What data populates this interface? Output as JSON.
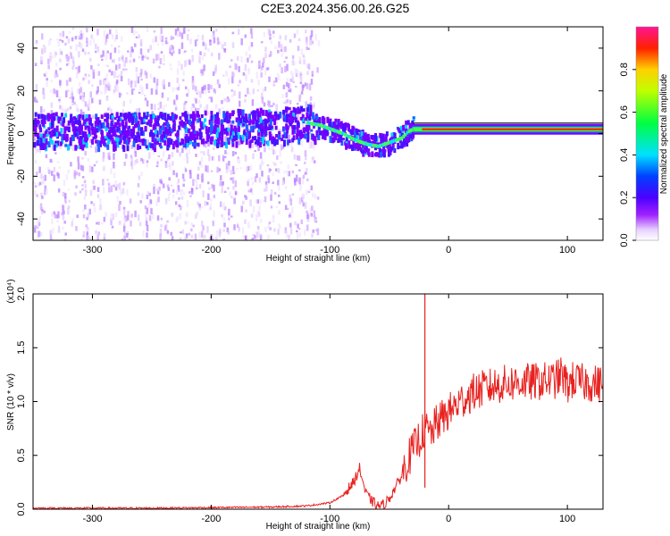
{
  "chart_data": [
    {
      "type": "heatmap",
      "title": "C2E3.2024.356.00.26.G25",
      "xlabel": "Height of straight line (km)",
      "ylabel": "Frequency (Hz)",
      "xlim": [
        -350,
        130
      ],
      "ylim": [
        -50,
        50
      ],
      "xticks": [
        "-300",
        "-200",
        "-100",
        "0",
        "100"
      ],
      "yticks": [
        "-40",
        "-20",
        "0",
        "20",
        "40"
      ],
      "colorbar": {
        "label": "Normalized spectral amplitude",
        "range": [
          0,
          1
        ],
        "ticks": [
          "0.0",
          "0.2",
          "0.4",
          "0.6",
          "0.8"
        ]
      },
      "ridge": {
        "x": [
          -350,
          -300,
          -250,
          -200,
          -150,
          -130,
          -120,
          -110,
          -100,
          -90,
          -80,
          -70,
          -60,
          -50,
          -40,
          -35,
          -30,
          -25,
          -20,
          0,
          50,
          80,
          90,
          100,
          130
        ],
        "y": [
          1,
          1,
          1,
          2,
          3,
          4,
          5,
          4,
          2,
          0,
          -3,
          -5,
          -6,
          -4,
          -2,
          1,
          2,
          3,
          3,
          2,
          2,
          2,
          2,
          2,
          2
        ]
      }
    },
    {
      "type": "line",
      "xlabel": "Height of straight line (km)",
      "ylabel": "SNR (10 * v/v)",
      "y_multiplier": "(x10⁴)",
      "xlim": [
        -350,
        130
      ],
      "ylim": [
        0,
        2.0
      ],
      "xticks": [
        "-300",
        "-200",
        "-100",
        "0",
        "100"
      ],
      "yticks": [
        "0.0",
        "0.5",
        "1.0",
        "1.5",
        "2.0"
      ],
      "series": [
        {
          "color": "#e8211f",
          "x": [
            -350,
            -300,
            -250,
            -200,
            -150,
            -120,
            -100,
            -90,
            -80,
            -75,
            -72,
            -70,
            -65,
            -60,
            -55,
            -50,
            -45,
            -40,
            -35,
            -30,
            -25,
            -20,
            -15,
            -10,
            -5,
            0,
            5,
            10,
            20,
            30,
            40,
            50,
            60,
            70,
            80,
            90,
            95,
            100,
            105,
            110,
            120,
            130
          ],
          "y": [
            0.01,
            0.01,
            0.01,
            0.015,
            0.02,
            0.03,
            0.06,
            0.12,
            0.25,
            0.38,
            0.25,
            0.15,
            0.08,
            0.03,
            0.04,
            0.1,
            0.2,
            0.3,
            0.45,
            0.55,
            0.65,
            0.75,
            0.7,
            0.8,
            0.85,
            0.9,
            0.95,
            1.0,
            1.08,
            1.12,
            1.15,
            1.17,
            1.18,
            1.18,
            1.19,
            1.2,
            1.25,
            1.15,
            1.2,
            1.18,
            1.17,
            1.16
          ]
        }
      ]
    }
  ]
}
